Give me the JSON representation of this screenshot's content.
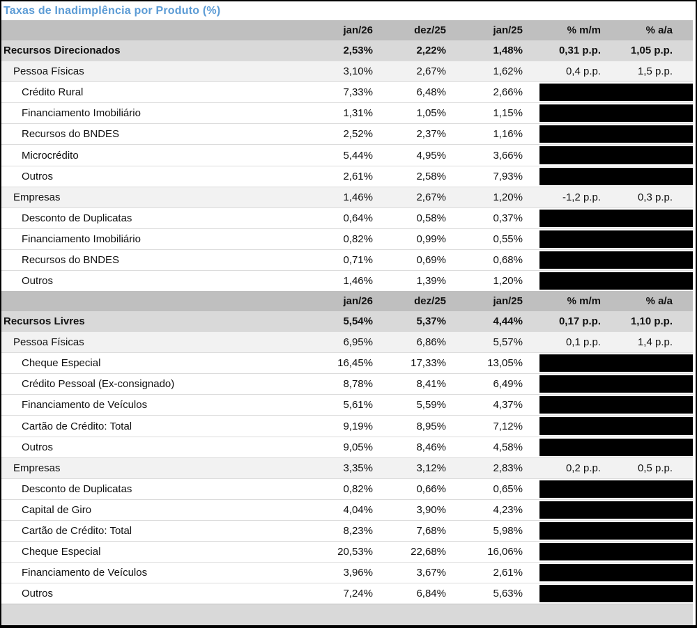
{
  "title": "Taxas de Inadimplência por Produto (%)",
  "colors": {
    "title_blue": "#5B9BD5",
    "column_header_gray": "#BFBFBF",
    "section_row_gray": "#D9D9D9",
    "subtotal_row_gray": "#F2F2F2",
    "redacted_cell_black": "#000000",
    "footer_filler_gray": "#D9D9D9"
  },
  "blocks": [
    {
      "columns": [
        "jan/26",
        "dez/25",
        "jan/25",
        "% m/m",
        "% a/a"
      ],
      "rows": [
        {
          "label": "Recursos Direcionados",
          "level": "section",
          "values": [
            "2,53%",
            "2,22%",
            "1,48%"
          ],
          "mm": "0,31 p.p.",
          "aa": "1,05 p.p."
        },
        {
          "label": "Pessoa Físicas",
          "level": "sub",
          "values": [
            "3,10%",
            "2,67%",
            "1,62%"
          ],
          "mm": "0,4 p.p.",
          "aa": "1,5 p.p."
        },
        {
          "label": "Crédito Rural",
          "level": "item",
          "values": [
            "7,33%",
            "6,48%",
            "2,66%"
          ],
          "redacted": true
        },
        {
          "label": "Financiamento Imobiliário",
          "level": "item",
          "values": [
            "1,31%",
            "1,05%",
            "1,15%"
          ],
          "redacted": true
        },
        {
          "label": "Recursos do BNDES",
          "level": "item",
          "values": [
            "2,52%",
            "2,37%",
            "1,16%"
          ],
          "redacted": true
        },
        {
          "label": "Microcrédito",
          "level": "item",
          "values": [
            "5,44%",
            "4,95%",
            "3,66%"
          ],
          "redacted": true
        },
        {
          "label": "Outros",
          "level": "item",
          "values": [
            "2,61%",
            "2,58%",
            "7,93%"
          ],
          "redacted": true
        },
        {
          "label": "Empresas",
          "level": "sub",
          "values": [
            "1,46%",
            "2,67%",
            "1,20%"
          ],
          "mm": "-1,2 p.p.",
          "aa": "0,3 p.p."
        },
        {
          "label": "Desconto de Duplicatas",
          "level": "item",
          "values": [
            "0,64%",
            "0,58%",
            "0,37%"
          ],
          "redacted": true
        },
        {
          "label": "Financiamento Imobiliário",
          "level": "item",
          "values": [
            "0,82%",
            "0,99%",
            "0,55%"
          ],
          "redacted": true
        },
        {
          "label": "Recursos do BNDES",
          "level": "item",
          "values": [
            "0,71%",
            "0,69%",
            "0,68%"
          ],
          "redacted": true
        },
        {
          "label": "Outros",
          "level": "item",
          "values": [
            "1,46%",
            "1,39%",
            "1,20%"
          ],
          "redacted": true
        }
      ]
    },
    {
      "columns": [
        "jan/26",
        "dez/25",
        "jan/25",
        "% m/m",
        "% a/a"
      ],
      "rows": [
        {
          "label": "Recursos Livres",
          "level": "section",
          "values": [
            "5,54%",
            "5,37%",
            "4,44%"
          ],
          "mm": "0,17 p.p.",
          "aa": "1,10 p.p."
        },
        {
          "label": "Pessoa Físicas",
          "level": "sub",
          "values": [
            "6,95%",
            "6,86%",
            "5,57%"
          ],
          "mm": "0,1 p.p.",
          "aa": "1,4 p.p."
        },
        {
          "label": "Cheque Especial",
          "level": "item",
          "values": [
            "16,45%",
            "17,33%",
            "13,05%"
          ],
          "redacted": true
        },
        {
          "label": "Crédito Pessoal (Ex-consignado)",
          "level": "item",
          "values": [
            "8,78%",
            "8,41%",
            "6,49%"
          ],
          "redacted": true
        },
        {
          "label": "Financiamento de Veículos",
          "level": "item",
          "values": [
            "5,61%",
            "5,59%",
            "4,37%"
          ],
          "redacted": true
        },
        {
          "label": "Cartão de Crédito: Total",
          "level": "item",
          "values": [
            "9,19%",
            "8,95%",
            "7,12%"
          ],
          "redacted": true
        },
        {
          "label": "Outros",
          "level": "item",
          "values": [
            "9,05%",
            "8,46%",
            "4,58%"
          ],
          "redacted": true
        },
        {
          "label": "Empresas",
          "level": "sub",
          "values": [
            "3,35%",
            "3,12%",
            "2,83%"
          ],
          "mm": "0,2 p.p.",
          "aa": "0,5 p.p."
        },
        {
          "label": "Desconto de Duplicatas",
          "level": "item",
          "values": [
            "0,82%",
            "0,66%",
            "0,65%"
          ],
          "redacted": true
        },
        {
          "label": "Capital de Giro",
          "level": "item",
          "values": [
            "4,04%",
            "3,90%",
            "4,23%"
          ],
          "redacted": true
        },
        {
          "label": "Cartão de Crédito: Total",
          "level": "item",
          "values": [
            "8,23%",
            "7,68%",
            "5,98%"
          ],
          "redacted": true
        },
        {
          "label": "Cheque Especial",
          "level": "item",
          "values": [
            "20,53%",
            "22,68%",
            "16,06%"
          ],
          "redacted": true
        },
        {
          "label": "Financiamento de Veículos",
          "level": "item",
          "values": [
            "3,96%",
            "3,67%",
            "2,61%"
          ],
          "redacted": true
        },
        {
          "label": "Outros",
          "level": "item",
          "values": [
            "7,24%",
            "6,84%",
            "5,63%"
          ],
          "redacted": true
        }
      ]
    }
  ]
}
